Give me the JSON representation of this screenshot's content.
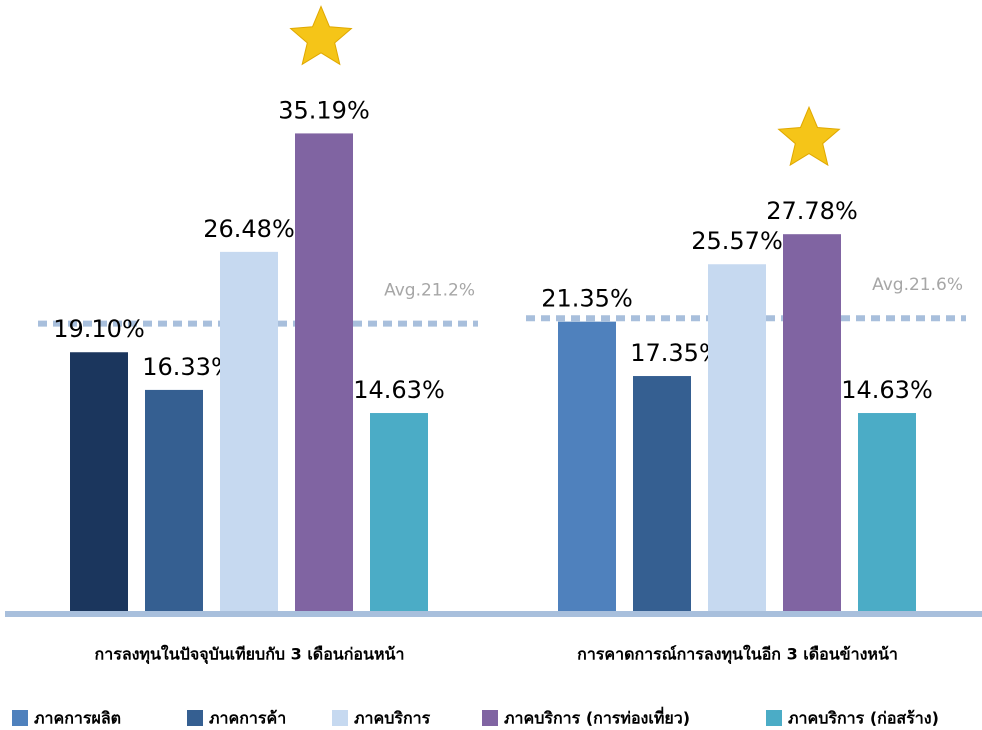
{
  "chart_data": {
    "type": "bar",
    "categories": [
      "การลงทุนในปัจจุบันเทียบกับ 3 เดือนก่อนหน้า",
      "การคาดการณ์การลงทุนในอีก 3 เดือนข้างหน้า"
    ],
    "series": [
      {
        "name": "ภาคการผลิต",
        "color": "#4f81bd",
        "bar_colors": [
          "#1b365d",
          "#4f81bd"
        ],
        "values": [
          19.1,
          21.35
        ],
        "value_labels": [
          "19.10%",
          "21.35%"
        ]
      },
      {
        "name": "ภาคการค้า",
        "color": "#355f91",
        "values": [
          16.33,
          17.35
        ],
        "value_labels": [
          "16.33%",
          "17.35%"
        ]
      },
      {
        "name": "ภาคบริการ",
        "color": "#c6d9f0",
        "values": [
          26.48,
          25.57
        ],
        "value_labels": [
          "26.48%",
          "25.57%"
        ]
      },
      {
        "name": "ภาคบริการ (การท่องเที่ยว)",
        "color": "#8064a2",
        "values": [
          35.19,
          27.78
        ],
        "value_labels": [
          "35.19%",
          "27.78%"
        ]
      },
      {
        "name": "ภาคบริการ (ก่อสร้าง)",
        "color": "#4bacc6",
        "values": [
          14.63,
          14.63
        ],
        "value_labels": [
          "14.63%",
          "14.63%"
        ]
      }
    ],
    "averages": [
      {
        "value": 21.2,
        "label": "Avg.21.2%"
      },
      {
        "value": 21.6,
        "label": "Avg.21.6%"
      }
    ],
    "ylim": [
      0,
      40
    ]
  }
}
